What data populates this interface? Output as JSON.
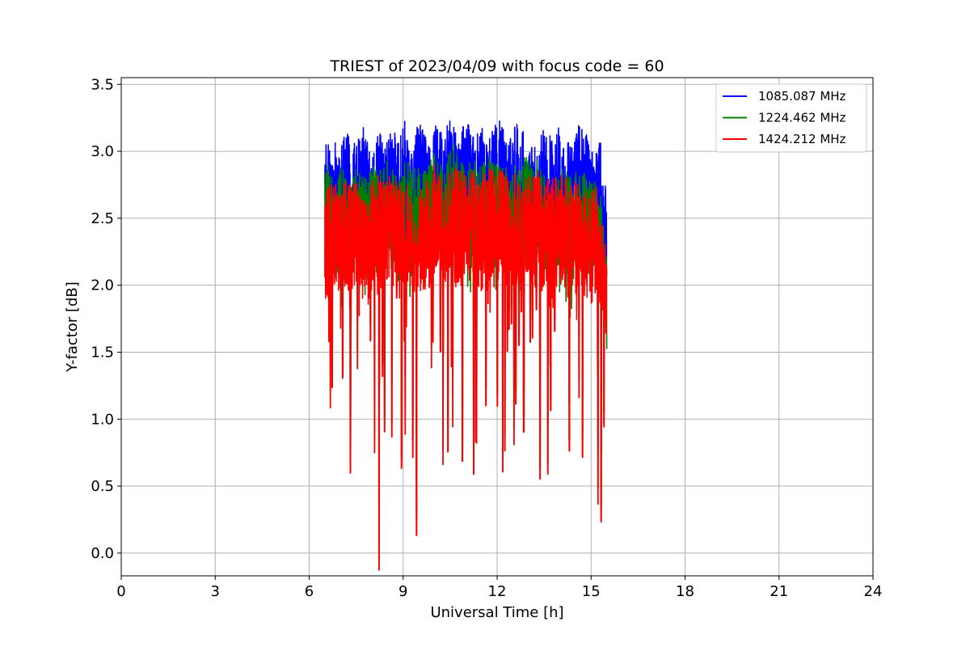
{
  "chart_data": {
    "type": "line",
    "title": "TRIEST of 2023/04/09 with focus code = 60",
    "xlabel": "Universal Time [h]",
    "ylabel": "Y-factor [dB]",
    "xlim": [
      0,
      24
    ],
    "ylim": [
      -0.17,
      3.55
    ],
    "xticks": [
      0,
      3,
      6,
      9,
      12,
      15,
      18,
      21,
      24
    ],
    "xtick_labels": [
      "0",
      "3",
      "6",
      "9",
      "12",
      "15",
      "18",
      "21",
      "24"
    ],
    "yticks": [
      0.0,
      0.5,
      1.0,
      1.5,
      2.0,
      2.5,
      3.0,
      3.5
    ],
    "ytick_labels": [
      "0.0",
      "0.5",
      "1.0",
      "1.5",
      "2.0",
      "2.5",
      "3.0",
      "3.5"
    ],
    "grid": true,
    "legend_position": "top-right",
    "series": [
      {
        "name": "1085.087 MHz",
        "color": "#0000ff",
        "x": [
          6.5,
          6.6,
          6.8,
          7.0,
          7.1,
          7.3,
          7.5,
          7.7,
          7.9,
          8.0,
          8.2,
          8.3,
          8.5,
          8.7,
          8.9,
          9.0,
          9.1,
          9.3,
          9.45,
          9.6,
          9.8,
          10.0,
          10.2,
          10.4,
          10.6,
          10.8,
          11.0,
          11.2,
          11.3,
          11.5,
          11.7,
          11.9,
          12.1,
          12.3,
          12.5,
          12.7,
          12.9,
          13.1,
          13.3,
          13.4,
          13.6,
          13.8,
          14.0,
          14.2,
          14.4,
          14.6,
          14.8,
          15.0,
          15.2,
          15.3,
          15.5
        ],
        "y": [
          3.2,
          3.05,
          3.15,
          3.0,
          3.2,
          3.1,
          3.05,
          3.2,
          3.15,
          3.0,
          3.25,
          3.1,
          3.1,
          3.2,
          3.05,
          3.35,
          3.1,
          3.0,
          3.2,
          3.2,
          3.05,
          3.2,
          3.15,
          3.25,
          3.2,
          3.05,
          3.3,
          3.1,
          3.15,
          3.2,
          3.05,
          3.2,
          3.3,
          3.1,
          3.2,
          3.25,
          3.1,
          3.2,
          3.0,
          3.2,
          3.15,
          3.1,
          3.2,
          3.05,
          3.1,
          3.2,
          3.15,
          3.05,
          3.1,
          3.1,
          2.7
        ]
      },
      {
        "name": "1224.462 MHz",
        "color": "#008000",
        "x": [
          6.5,
          6.6,
          6.8,
          7.0,
          7.1,
          7.3,
          7.5,
          7.7,
          7.9,
          8.0,
          8.2,
          8.3,
          8.5,
          8.7,
          8.9,
          9.0,
          9.1,
          9.3,
          9.45,
          9.6,
          9.8,
          10.0,
          10.2,
          10.4,
          10.6,
          10.8,
          11.0,
          11.2,
          11.3,
          11.5,
          11.7,
          11.9,
          12.1,
          12.3,
          12.5,
          12.7,
          12.9,
          13.1,
          13.3,
          13.4,
          13.6,
          13.8,
          14.0,
          14.2,
          14.4,
          14.6,
          14.8,
          15.0,
          15.2,
          15.3,
          15.5
        ],
        "y": [
          2.85,
          2.9,
          2.8,
          2.9,
          2.85,
          2.8,
          2.9,
          2.85,
          2.8,
          2.9,
          2.9,
          2.85,
          2.95,
          2.85,
          2.8,
          2.9,
          2.95,
          2.85,
          2.9,
          2.85,
          2.9,
          3.05,
          2.9,
          2.95,
          3.1,
          2.9,
          2.95,
          2.9,
          2.95,
          2.9,
          3.0,
          2.9,
          2.95,
          2.9,
          2.95,
          2.9,
          3.0,
          2.9,
          2.95,
          2.85,
          2.9,
          2.85,
          2.9,
          2.85,
          2.8,
          2.9,
          2.85,
          2.8,
          2.85,
          2.7,
          2.3
        ]
      },
      {
        "name": "1424.212 MHz",
        "color": "#ff0000",
        "x": [
          6.5,
          6.6,
          6.8,
          7.0,
          7.1,
          7.3,
          7.5,
          7.7,
          7.9,
          8.0,
          8.2,
          8.3,
          8.5,
          8.7,
          8.9,
          9.0,
          9.1,
          9.3,
          9.45,
          9.6,
          9.8,
          10.0,
          10.2,
          10.4,
          10.6,
          10.8,
          11.0,
          11.2,
          11.3,
          11.5,
          11.7,
          11.9,
          12.1,
          12.3,
          12.5,
          12.7,
          12.9,
          13.1,
          13.3,
          13.4,
          13.6,
          13.8,
          14.0,
          14.2,
          14.4,
          14.6,
          14.8,
          15.0,
          15.2,
          15.3,
          15.5
        ],
        "y": [
          2.8,
          2.75,
          2.8,
          2.7,
          2.8,
          2.75,
          2.8,
          2.75,
          2.7,
          2.8,
          2.85,
          2.8,
          2.85,
          2.8,
          2.75,
          2.85,
          2.8,
          2.75,
          2.8,
          2.75,
          2.8,
          2.9,
          2.85,
          2.8,
          2.9,
          2.85,
          2.9,
          2.85,
          2.85,
          2.8,
          2.9,
          2.85,
          2.9,
          2.8,
          2.85,
          2.85,
          2.9,
          2.8,
          2.85,
          2.8,
          2.85,
          2.8,
          2.85,
          2.8,
          2.75,
          2.8,
          2.75,
          2.7,
          2.75,
          2.65,
          2.2
        ]
      }
    ]
  }
}
